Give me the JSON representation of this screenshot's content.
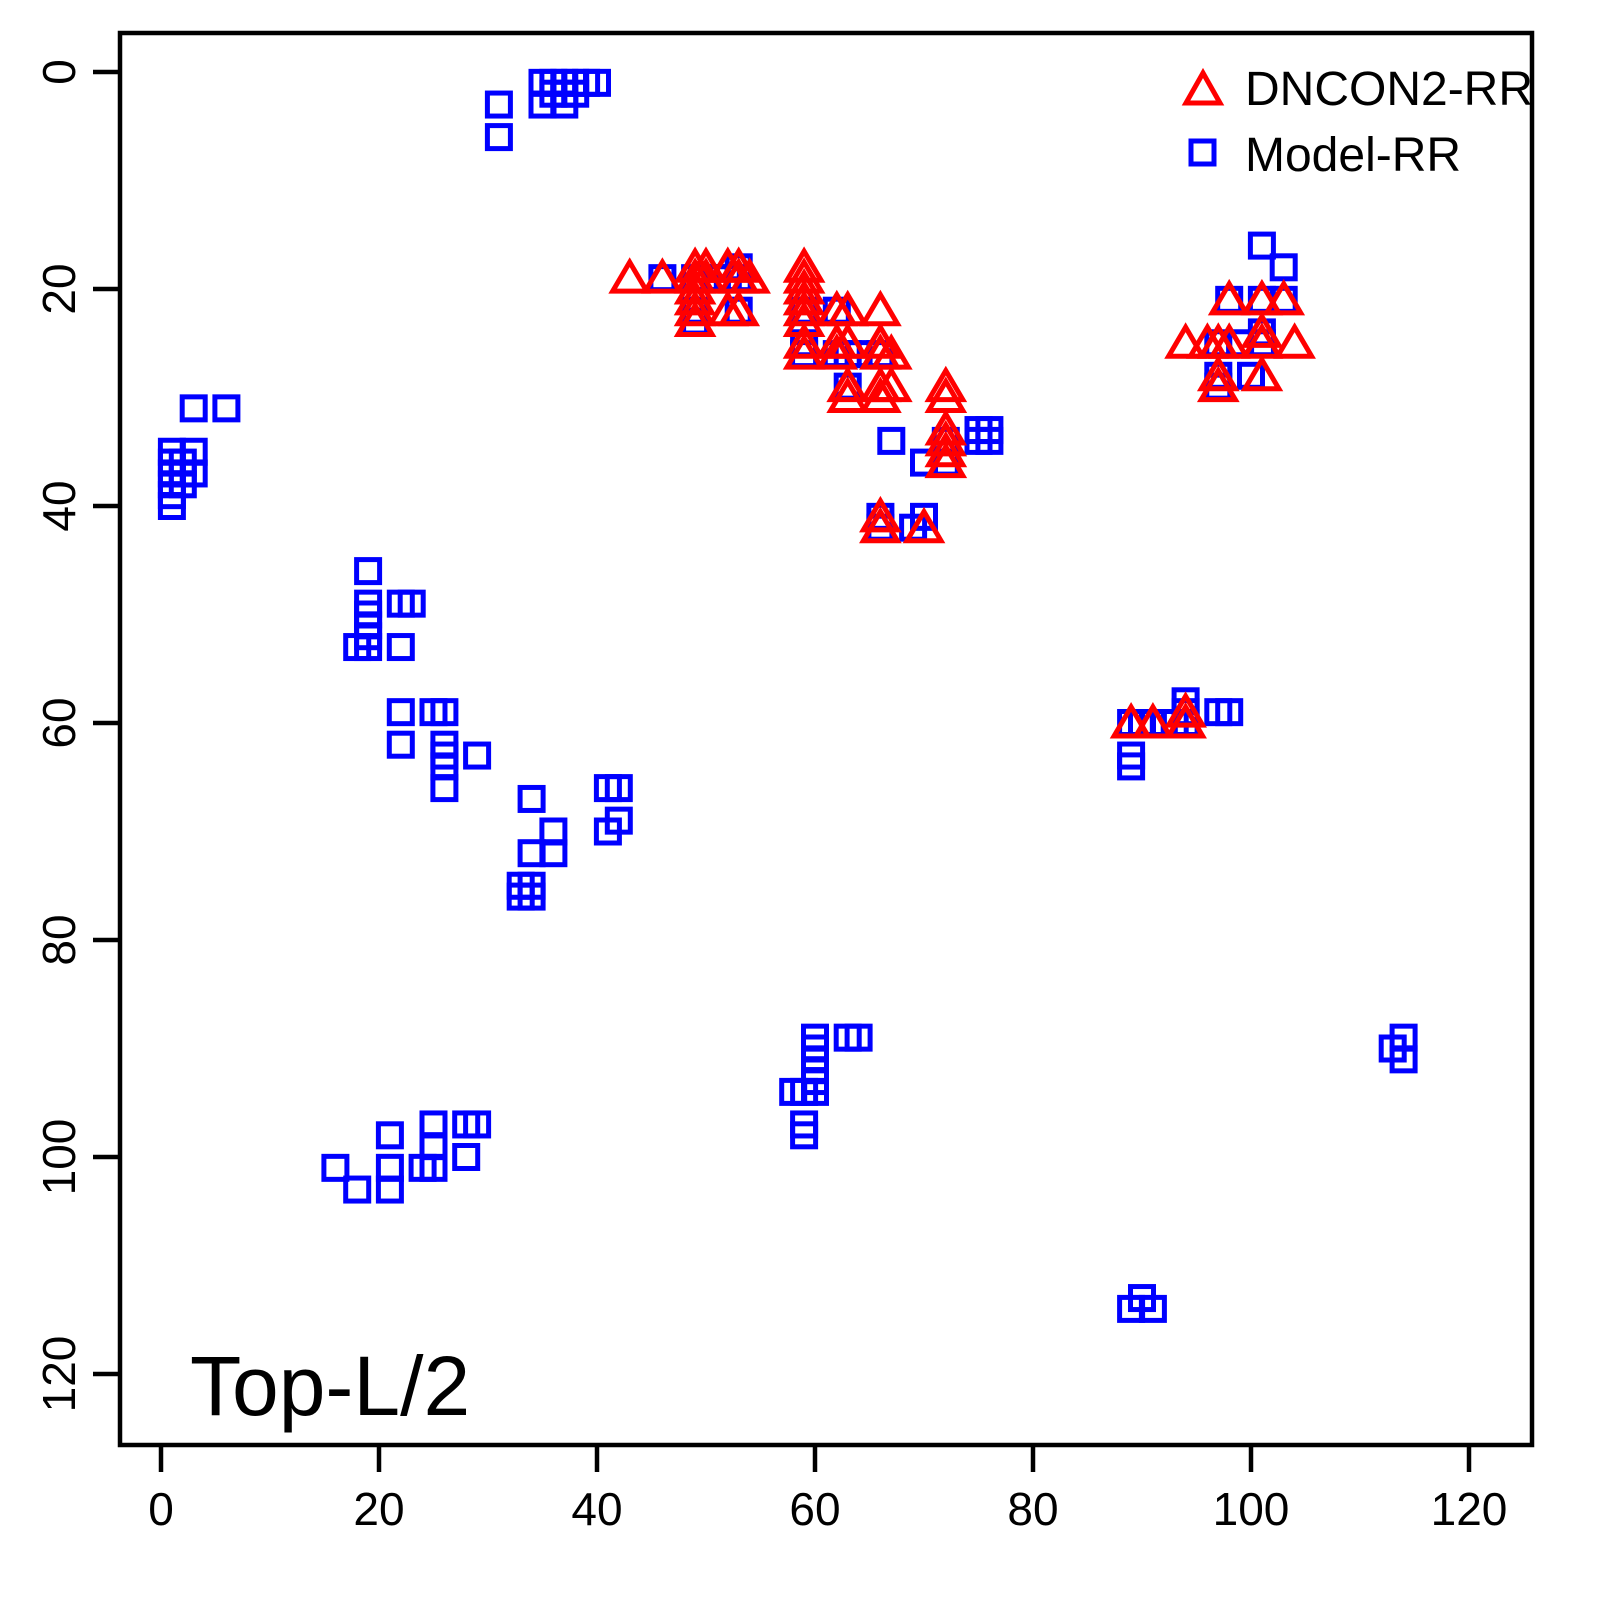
{
  "chart_data": {
    "type": "scatter",
    "annotation": "Top-L/2",
    "xlabel": "",
    "ylabel": "",
    "x_ticks": [
      0,
      20,
      40,
      60,
      80,
      100,
      120
    ],
    "y_ticks": [
      0,
      20,
      40,
      60,
      80,
      100,
      120
    ],
    "xlim": [
      -4,
      126
    ],
    "ylim": [
      126,
      -4
    ],
    "y_axis_inverted": true,
    "grid": false,
    "legend_position": "top-right-inside",
    "axis_color": "#000000",
    "background_color": "#ffffff",
    "legend": [
      {
        "label": "DNCON2-RR",
        "marker": "triangle",
        "color": "#ff0000"
      },
      {
        "label": "Model-RR",
        "marker": "square",
        "color": "#0000ff"
      }
    ],
    "series": [
      {
        "name": "Model-RR",
        "marker": "square",
        "color": "#0000ff",
        "points": [
          [
            35,
            1
          ],
          [
            36,
            1
          ],
          [
            37,
            1
          ],
          [
            38,
            1
          ],
          [
            39,
            1
          ],
          [
            40,
            1
          ],
          [
            36,
            2
          ],
          [
            37,
            2
          ],
          [
            38,
            2
          ],
          [
            35,
            3
          ],
          [
            37,
            3
          ],
          [
            31,
            3
          ],
          [
            31,
            6
          ],
          [
            1,
            35
          ],
          [
            1,
            36
          ],
          [
            2,
            36
          ],
          [
            1,
            37
          ],
          [
            2,
            37
          ],
          [
            3,
            35
          ],
          [
            3,
            37
          ],
          [
            1,
            38
          ],
          [
            2,
            38
          ],
          [
            1,
            39
          ],
          [
            1,
            40
          ],
          [
            3,
            31
          ],
          [
            6,
            31
          ],
          [
            46,
            19
          ],
          [
            49,
            19
          ],
          [
            50,
            19
          ],
          [
            51,
            19
          ],
          [
            52,
            19
          ],
          [
            53,
            18
          ],
          [
            53,
            19
          ],
          [
            49,
            22
          ],
          [
            49,
            23
          ],
          [
            53,
            22
          ],
          [
            59,
            22
          ],
          [
            59,
            25
          ],
          [
            59,
            26
          ],
          [
            62,
            22
          ],
          [
            62,
            26
          ],
          [
            63,
            26
          ],
          [
            64,
            26
          ],
          [
            66,
            26
          ],
          [
            63,
            29
          ],
          [
            67,
            34
          ],
          [
            72,
            34
          ],
          [
            75,
            33
          ],
          [
            76,
            33
          ],
          [
            75,
            34
          ],
          [
            76,
            34
          ],
          [
            70,
            36
          ],
          [
            72,
            36
          ],
          [
            66,
            41
          ],
          [
            66,
            42
          ],
          [
            69,
            42
          ],
          [
            70,
            41
          ],
          [
            19,
            46
          ],
          [
            19,
            49
          ],
          [
            19,
            50
          ],
          [
            19,
            51
          ],
          [
            19,
            52
          ],
          [
            18,
            53
          ],
          [
            19,
            53
          ],
          [
            22,
            49
          ],
          [
            23,
            49
          ],
          [
            22,
            53
          ],
          [
            22,
            59
          ],
          [
            25,
            59
          ],
          [
            26,
            59
          ],
          [
            22,
            62
          ],
          [
            26,
            62
          ],
          [
            26,
            63
          ],
          [
            26,
            64
          ],
          [
            26,
            66
          ],
          [
            29,
            63
          ],
          [
            34,
            67
          ],
          [
            34,
            72
          ],
          [
            33,
            75
          ],
          [
            33,
            76
          ],
          [
            34,
            75
          ],
          [
            34,
            76
          ],
          [
            36,
            70
          ],
          [
            36,
            72
          ],
          [
            41,
            66
          ],
          [
            42,
            66
          ],
          [
            42,
            69
          ],
          [
            41,
            70
          ],
          [
            101,
            16
          ],
          [
            103,
            18
          ],
          [
            98,
            21
          ],
          [
            101,
            21
          ],
          [
            103,
            21
          ],
          [
            101,
            24
          ],
          [
            97,
            25
          ],
          [
            99,
            25
          ],
          [
            101,
            25
          ],
          [
            97,
            28
          ],
          [
            97,
            29
          ],
          [
            100,
            28
          ],
          [
            16,
            101
          ],
          [
            18,
            103
          ],
          [
            21,
            98
          ],
          [
            21,
            101
          ],
          [
            21,
            103
          ],
          [
            24,
            101
          ],
          [
            25,
            97
          ],
          [
            25,
            99
          ],
          [
            25,
            101
          ],
          [
            28,
            97
          ],
          [
            29,
            97
          ],
          [
            28,
            100
          ],
          [
            89,
            60
          ],
          [
            90,
            60
          ],
          [
            91,
            60
          ],
          [
            92,
            60
          ],
          [
            93,
            60
          ],
          [
            94,
            58
          ],
          [
            94,
            59
          ],
          [
            94,
            60
          ],
          [
            97,
            59
          ],
          [
            98,
            59
          ],
          [
            89,
            63
          ],
          [
            89,
            64
          ],
          [
            60,
            89
          ],
          [
            60,
            90
          ],
          [
            60,
            91
          ],
          [
            60,
            92
          ],
          [
            60,
            93
          ],
          [
            58,
            94
          ],
          [
            59,
            94
          ],
          [
            60,
            94
          ],
          [
            59,
            97
          ],
          [
            59,
            98
          ],
          [
            63,
            89
          ],
          [
            64,
            89
          ],
          [
            114,
            89
          ],
          [
            113,
            90
          ],
          [
            114,
            91
          ],
          [
            89,
            114
          ],
          [
            90,
            113
          ],
          [
            91,
            114
          ]
        ]
      },
      {
        "name": "DNCON2-RR",
        "marker": "triangle",
        "color": "#ff0000",
        "points": [
          [
            43,
            19
          ],
          [
            46,
            19
          ],
          [
            49,
            18
          ],
          [
            50,
            18
          ],
          [
            49,
            19
          ],
          [
            50,
            19
          ],
          [
            49,
            20
          ],
          [
            52,
            18
          ],
          [
            53,
            18
          ],
          [
            53,
            19
          ],
          [
            54,
            19
          ],
          [
            49,
            21
          ],
          [
            49,
            22
          ],
          [
            49,
            23
          ],
          [
            52,
            22
          ],
          [
            53,
            22
          ],
          [
            59,
            18
          ],
          [
            59,
            19
          ],
          [
            59,
            20
          ],
          [
            59,
            21
          ],
          [
            59,
            22
          ],
          [
            59,
            23
          ],
          [
            59,
            25
          ],
          [
            59,
            26
          ],
          [
            62,
            22
          ],
          [
            63,
            22
          ],
          [
            66,
            22
          ],
          [
            62,
            25
          ],
          [
            63,
            25
          ],
          [
            62,
            26
          ],
          [
            66,
            25
          ],
          [
            66,
            26
          ],
          [
            67,
            26
          ],
          [
            63,
            29
          ],
          [
            63,
            30
          ],
          [
            66,
            29
          ],
          [
            67,
            29
          ],
          [
            66,
            30
          ],
          [
            72,
            29
          ],
          [
            72,
            30
          ],
          [
            72,
            33
          ],
          [
            72,
            34
          ],
          [
            72,
            35
          ],
          [
            72,
            36
          ],
          [
            66,
            41
          ],
          [
            66,
            42
          ],
          [
            70,
            42
          ],
          [
            98,
            21
          ],
          [
            101,
            21
          ],
          [
            103,
            21
          ],
          [
            94,
            25
          ],
          [
            96,
            25
          ],
          [
            97,
            25
          ],
          [
            98,
            25
          ],
          [
            101,
            24
          ],
          [
            101,
            25
          ],
          [
            104,
            25
          ],
          [
            97,
            28
          ],
          [
            97,
            29
          ],
          [
            101,
            28
          ],
          [
            89,
            60
          ],
          [
            91,
            60
          ],
          [
            94,
            59
          ],
          [
            94,
            60
          ]
        ]
      }
    ]
  }
}
